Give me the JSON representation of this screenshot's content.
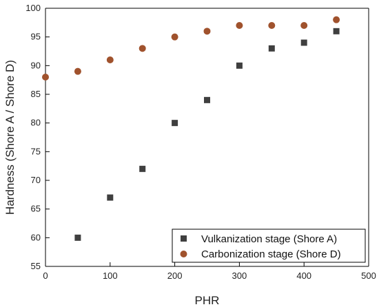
{
  "chart_data": {
    "type": "scatter",
    "title": "",
    "xlabel": "PHR",
    "ylabel": "Hardness (Shore A / Shore D)",
    "xlim": [
      0,
      500
    ],
    "ylim": [
      55,
      100
    ],
    "x_ticks": [
      0,
      100,
      200,
      300,
      400,
      500
    ],
    "y_ticks": [
      55,
      60,
      65,
      70,
      75,
      80,
      85,
      90,
      95,
      100
    ],
    "grid": false,
    "legend_position": "bottom-right",
    "series": [
      {
        "name": "Vulkanization stage (Shore A)",
        "marker": "square",
        "color": "#3f3f3f",
        "x": [
          50,
          100,
          150,
          200,
          250,
          300,
          350,
          400,
          450
        ],
        "y": [
          60,
          67,
          72,
          80,
          84,
          90,
          93,
          94,
          96
        ]
      },
      {
        "name": "Carbonization stage (Shore D)",
        "marker": "circle",
        "color": "#a0522d",
        "x": [
          0,
          50,
          100,
          150,
          200,
          250,
          300,
          350,
          400,
          450
        ],
        "y": [
          88,
          89,
          91,
          93,
          95,
          96,
          97,
          97,
          97,
          98
        ]
      }
    ]
  }
}
